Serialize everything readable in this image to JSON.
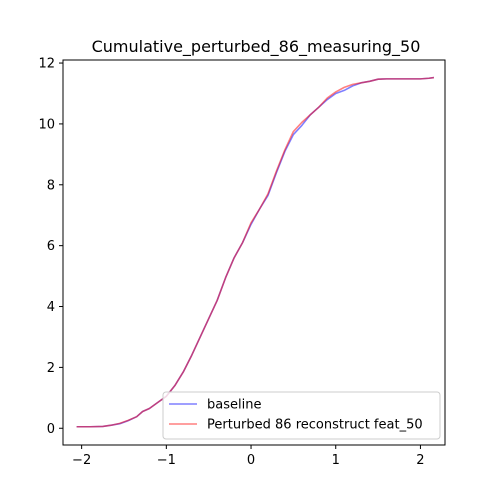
{
  "chart_data": {
    "type": "line",
    "title": "Cumulative_perturbed_86_measuring_50",
    "xlabel": "",
    "ylabel": "",
    "xlim": [
      -2.22,
      2.29
    ],
    "ylim": [
      -0.55,
      12.1
    ],
    "xticks": [
      -2,
      -1,
      0,
      1,
      2
    ],
    "yticks": [
      0,
      2,
      4,
      6,
      8,
      10,
      12
    ],
    "grid": false,
    "legend_position": "lower-right",
    "series": [
      {
        "name": "baseline",
        "color": "#0000ff",
        "alpha": 0.5,
        "x": [
          -2.05,
          -1.9,
          -1.75,
          -1.65,
          -1.55,
          -1.45,
          -1.35,
          -1.28,
          -1.2,
          -1.1,
          -1.0,
          -0.9,
          -0.8,
          -0.7,
          -0.6,
          -0.5,
          -0.4,
          -0.3,
          -0.2,
          -0.1,
          0.0,
          0.1,
          0.2,
          0.3,
          0.4,
          0.5,
          0.6,
          0.7,
          0.8,
          0.9,
          1.0,
          1.1,
          1.2,
          1.3,
          1.4,
          1.5,
          1.6,
          1.8,
          2.0,
          2.1,
          2.15
        ],
        "y": [
          0.05,
          0.05,
          0.06,
          0.1,
          0.15,
          0.25,
          0.38,
          0.55,
          0.65,
          0.85,
          1.05,
          1.4,
          1.85,
          2.4,
          3.0,
          3.6,
          4.2,
          4.95,
          5.6,
          6.1,
          6.7,
          7.2,
          7.65,
          8.4,
          9.1,
          9.65,
          9.95,
          10.3,
          10.55,
          10.8,
          11.0,
          11.1,
          11.25,
          11.35,
          11.4,
          11.47,
          11.48,
          11.48,
          11.48,
          11.5,
          11.52
        ]
      },
      {
        "name": "Perturbed 86 reconstruct feat_50",
        "color": "#ff0000",
        "alpha": 0.5,
        "x": [
          -2.05,
          -1.9,
          -1.75,
          -1.65,
          -1.55,
          -1.45,
          -1.35,
          -1.28,
          -1.2,
          -1.1,
          -1.0,
          -0.9,
          -0.8,
          -0.7,
          -0.6,
          -0.5,
          -0.4,
          -0.3,
          -0.2,
          -0.1,
          0.0,
          0.1,
          0.2,
          0.3,
          0.4,
          0.5,
          0.6,
          0.7,
          0.8,
          0.9,
          1.0,
          1.1,
          1.2,
          1.3,
          1.4,
          1.5,
          1.6,
          1.8,
          2.0,
          2.1,
          2.15
        ],
        "y": [
          0.05,
          0.05,
          0.06,
          0.1,
          0.16,
          0.26,
          0.38,
          0.55,
          0.65,
          0.85,
          1.05,
          1.4,
          1.85,
          2.4,
          3.0,
          3.6,
          4.2,
          4.95,
          5.6,
          6.1,
          6.75,
          7.2,
          7.7,
          8.45,
          9.15,
          9.75,
          10.05,
          10.3,
          10.55,
          10.85,
          11.05,
          11.2,
          11.3,
          11.35,
          11.4,
          11.47,
          11.48,
          11.48,
          11.48,
          11.5,
          11.52
        ]
      }
    ]
  }
}
